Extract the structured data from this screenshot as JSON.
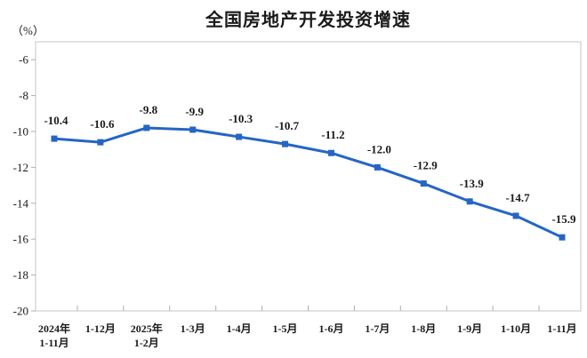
{
  "header": {
    "title": "全国房地产开发投资增速",
    "unit_label": "（%）"
  },
  "chart_data": {
    "type": "line",
    "title": "全国房地产开发投资增速",
    "unit": "（%）",
    "categories": [
      "2024年\n1-11月",
      "1-12月",
      "2025年\n1-2月",
      "1-3月",
      "1-4月",
      "1-5月",
      "1-6月",
      "1-7月",
      "1-8月",
      "1-9月",
      "1-10月",
      "1-11月"
    ],
    "series": [
      {
        "name": "全国房地产开发投资增速",
        "values": [
          -10.4,
          -10.6,
          -9.8,
          -9.9,
          -10.3,
          -10.7,
          -11.2,
          -12.0,
          -12.9,
          -13.9,
          -14.7,
          -15.9
        ],
        "data_labels": [
          "-10.4",
          "-10.6",
          "-9.8",
          "-9.9",
          "-10.3",
          "-10.7",
          "-11.2",
          "-12.0",
          "-12.9",
          "-13.9",
          "-14.7",
          "-15.9"
        ]
      }
    ],
    "ylabel": "",
    "xlabel": "",
    "ylim": [
      -20,
      -5
    ],
    "yticks": [
      -6,
      -8,
      -10,
      -12,
      -14,
      -16,
      -18,
      -20
    ],
    "grid": false,
    "legend_position": "none",
    "marker": "square",
    "colors": {
      "line": "#2565c6",
      "marker": "#2565c6",
      "text": "#1a1a1a",
      "plot_border": "#d9d9d9",
      "tick": "#b0b0b0"
    }
  }
}
